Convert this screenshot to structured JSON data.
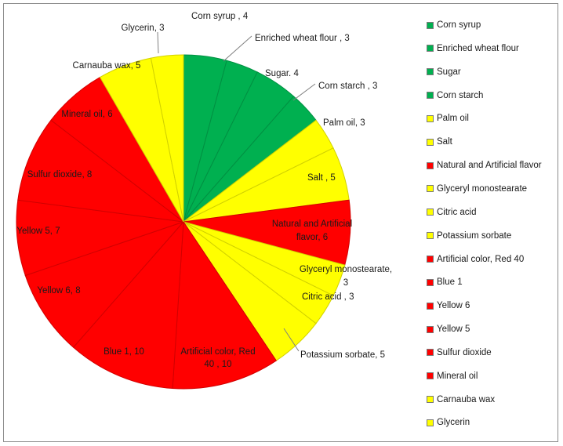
{
  "chart_data": {
    "type": "pie",
    "title": "",
    "slices": [
      {
        "name": "Corn syrup",
        "value": 4,
        "label": "Corn syrup , 4",
        "color": "#00b050"
      },
      {
        "name": "Enriched wheat flour",
        "value": 3,
        "label": "Enriched wheat flour , 3",
        "color": "#00b050"
      },
      {
        "name": "Sugar",
        "value": 4,
        "label": "Sugar. 4",
        "color": "#00b050"
      },
      {
        "name": "Corn starch",
        "value": 3,
        "label": "Corn starch , 3",
        "color": "#00b050"
      },
      {
        "name": "Palm oil",
        "value": 3,
        "label": "Palm oil, 3",
        "color": "#ffff00"
      },
      {
        "name": "Salt",
        "value": 5,
        "label": "Salt , 5",
        "color": "#ffff00"
      },
      {
        "name": "Natural and Artificial flavor",
        "value": 6,
        "label": "Natural and Artificial flavor, 6",
        "color": "#ff0000"
      },
      {
        "name": "Glyceryl monostearate",
        "value": 3,
        "label": "Glyceryl monostearate, 3",
        "color": "#ffff00"
      },
      {
        "name": "Citric acid",
        "value": 3,
        "label": "Citric acid , 3",
        "color": "#ffff00"
      },
      {
        "name": "Potassium sorbate",
        "value": 5,
        "label": "Potassium sorbate, 5",
        "color": "#ffff00"
      },
      {
        "name": "Artificial color, Red 40",
        "value": 10,
        "label": "Artificial color, Red 40 , 10",
        "color": "#ff0000"
      },
      {
        "name": "Blue 1",
        "value": 10,
        "label": "Blue 1, 10",
        "color": "#ff0000"
      },
      {
        "name": "Yellow 6",
        "value": 8,
        "label": "Yellow 6, 8",
        "color": "#ff0000"
      },
      {
        "name": "Yellow 5",
        "value": 7,
        "label": "Yellow 5, 7",
        "color": "#ff0000"
      },
      {
        "name": "Sulfur dioxide",
        "value": 8,
        "label": "Sulfur dioxide, 8",
        "color": "#ff0000"
      },
      {
        "name": "Mineral oil",
        "value": 6,
        "label": "Mineral oil, 6",
        "color": "#ff0000"
      },
      {
        "name": "Carnauba wax",
        "value": 5,
        "label": "Carnauba wax, 5",
        "color": "#ffff00"
      },
      {
        "name": "Glycerin",
        "value": 3,
        "label": "Glycerin, 3",
        "color": "#ffff00"
      }
    ],
    "legend_position": "right"
  }
}
